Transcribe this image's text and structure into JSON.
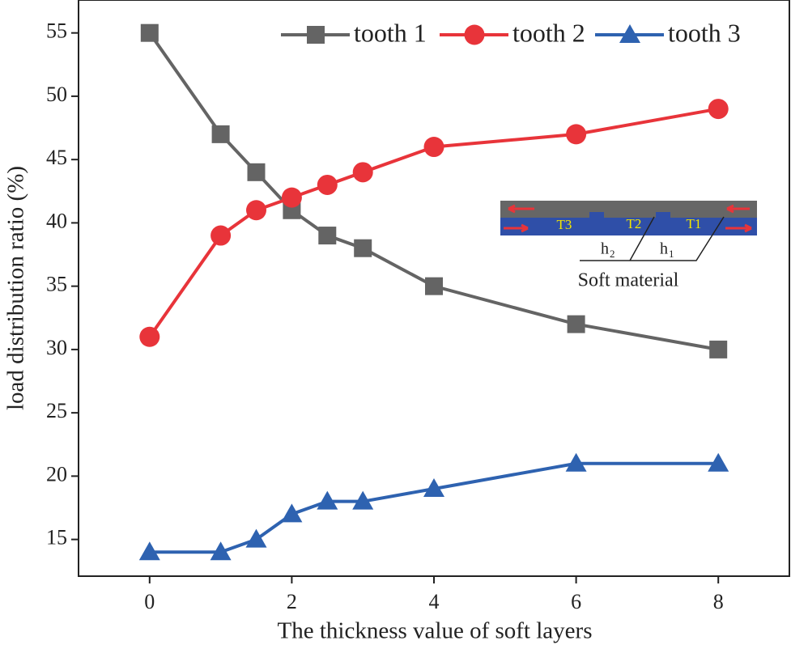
{
  "chart_data": {
    "type": "line",
    "xlabel": "The thickness value of soft layers",
    "ylabel": "load distribution ratio (%)",
    "x": [
      0,
      1,
      1.5,
      2,
      2.5,
      3,
      4,
      6,
      8
    ],
    "series": [
      {
        "name": "tooth 1",
        "color": "#646464",
        "marker": "square",
        "values": [
          55,
          47,
          44,
          41,
          39,
          38,
          35,
          32,
          30
        ]
      },
      {
        "name": "tooth 2",
        "color": "#e8343a",
        "marker": "circle",
        "values": [
          31,
          39,
          41,
          42,
          43,
          44,
          46,
          47,
          49
        ]
      },
      {
        "name": "tooth 3",
        "color": "#2e62b0",
        "marker": "triangle",
        "values": [
          14,
          14,
          15,
          17,
          18,
          18,
          19,
          21,
          21
        ]
      }
    ],
    "xlim": [
      -1,
      9
    ],
    "xticks": [
      0,
      2,
      4,
      6,
      8
    ],
    "ylim": [
      12.1,
      57.6
    ],
    "yticks": [
      15,
      20,
      25,
      30,
      35,
      40,
      45,
      50,
      55
    ],
    "legend": "top-right",
    "inset": {
      "labels": [
        "T3",
        "T2",
        "T1"
      ],
      "dimensions": [
        {
          "symbol": "h",
          "subscript": "2"
        },
        {
          "symbol": "h",
          "subscript": "1"
        }
      ],
      "material": "Soft material"
    }
  }
}
